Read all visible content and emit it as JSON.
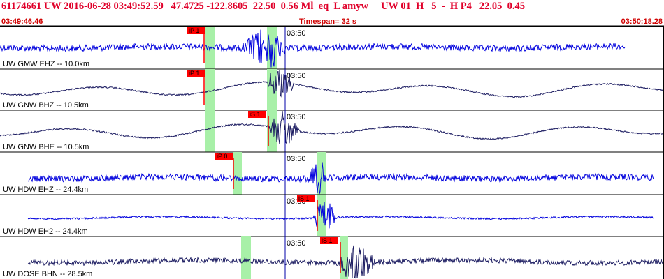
{
  "header": {
    "title": "61174661 UW 2016-06-28 03:49:52.59   47.4725 -122.8605  22.50  0.56 Ml  eq  L amyw     UW 01  H   5  -  H P4   22.05  0.45",
    "start_time": "03:49:46.46",
    "timespan": "Timespan=  32 s",
    "end_time": "03:50:18.28"
  },
  "colors": {
    "header_text": "#e0002a",
    "trace_blue": "#0000dd",
    "trace_dark": "#1a1a60",
    "pick_flag": "#ff0000",
    "pick_window": "#a8f0a8",
    "minute_line": "#0000aa"
  },
  "minute_label": "03:50",
  "traces": [
    {
      "label": "UW GMW EHZ -- 10.0km",
      "pick": "iP 1",
      "color": "#0000dd",
      "type": "noise-blue"
    },
    {
      "label": "UW GNW BHZ -- 10.5km",
      "pick": "iP 1",
      "color": "#1a1a60",
      "type": "wave-dark"
    },
    {
      "label": "UW GNW BHE -- 10.5km",
      "pick": "iS 1",
      "color": "#1a1a60",
      "type": "wave-dark"
    },
    {
      "label": "UW HDW EHZ -- 24.4km",
      "pick": "iP 0",
      "color": "#0000dd",
      "type": "noise-blue"
    },
    {
      "label": "UW HDW EH2 -- 24.4km",
      "pick": "iS 1",
      "color": "#0000dd",
      "type": "quiet-blue"
    },
    {
      "label": "UW DOSE BHN -- 28.5km",
      "pick": "iS 1",
      "color": "#1a1a60",
      "type": "noise-dark"
    }
  ]
}
